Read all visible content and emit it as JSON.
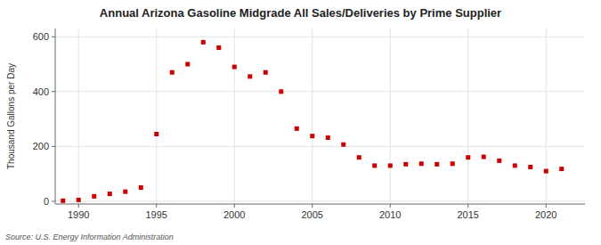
{
  "chart_data": {
    "type": "scatter",
    "title": "Annual Arizona Gasoline Midgrade All Sales/Deliveries by Prime Supplier",
    "ylabel": "Thousand Gallons per Day",
    "source": "Source: U.S. Energy Information Administration",
    "x": [
      1989,
      1990,
      1991,
      1992,
      1993,
      1994,
      1995,
      1996,
      1997,
      1998,
      1999,
      2000,
      2001,
      2002,
      2003,
      2004,
      2005,
      2006,
      2007,
      2008,
      2009,
      2010,
      2011,
      2012,
      2013,
      2014,
      2015,
      2016,
      2017,
      2018,
      2019,
      2020,
      2021
    ],
    "values": [
      2,
      5,
      18,
      27,
      35,
      50,
      245,
      470,
      500,
      580,
      560,
      490,
      455,
      470,
      400,
      265,
      238,
      232,
      207,
      160,
      130,
      130,
      135,
      137,
      135,
      137,
      160,
      162,
      148,
      130,
      125,
      110,
      118
    ],
    "color": "#cc0000",
    "marker": "square",
    "xlim": [
      1988.5,
      2022.5
    ],
    "ylim": [
      -10,
      630
    ],
    "xticks": [
      1990,
      1995,
      2000,
      2005,
      2010,
      2015,
      2020
    ],
    "yticks": [
      0,
      200,
      400,
      600
    ],
    "grid": true
  }
}
